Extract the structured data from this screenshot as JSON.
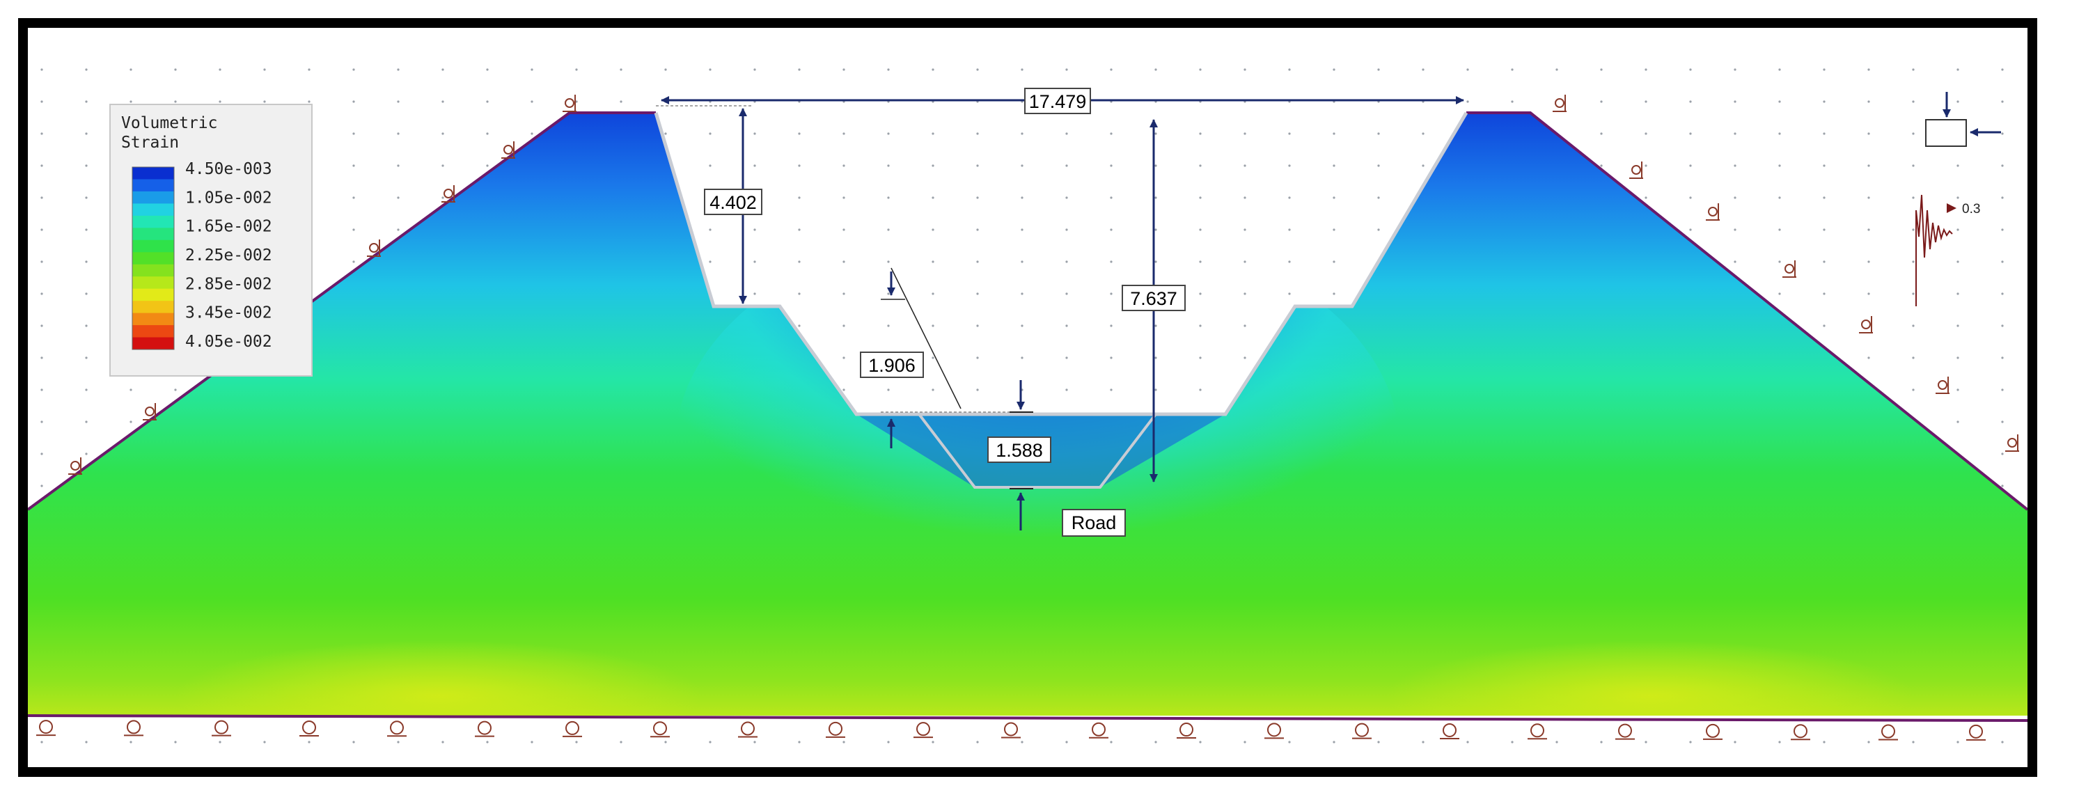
{
  "legend": {
    "title_line1": "Volumetric",
    "title_line2": "Strain",
    "labels": [
      "4.50e-003",
      "1.05e-002",
      "1.65e-002",
      "2.25e-002",
      "2.85e-002",
      "3.45e-002",
      "4.05e-002"
    ],
    "colors": [
      "#0a2fd0",
      "#1560e8",
      "#1a9ce8",
      "#21d2e2",
      "#22e6b4",
      "#25e47e",
      "#2fe24a",
      "#52e028",
      "#84e21e",
      "#b6e81a",
      "#e2ea18",
      "#f2c416",
      "#f28a14",
      "#ec4812",
      "#d41010"
    ]
  },
  "dimensions": {
    "top_width": "17.479",
    "upper_depth": "4.402",
    "total_depth": "7.637",
    "bench_offset": "1.906",
    "road_depth": "1.588"
  },
  "annotations": {
    "road": "Road",
    "load_value": "0.3"
  },
  "icons": [
    "roller-support-icon",
    "pin-support-icon",
    "axis-arrow-icon",
    "seismic-load-icon"
  ]
}
